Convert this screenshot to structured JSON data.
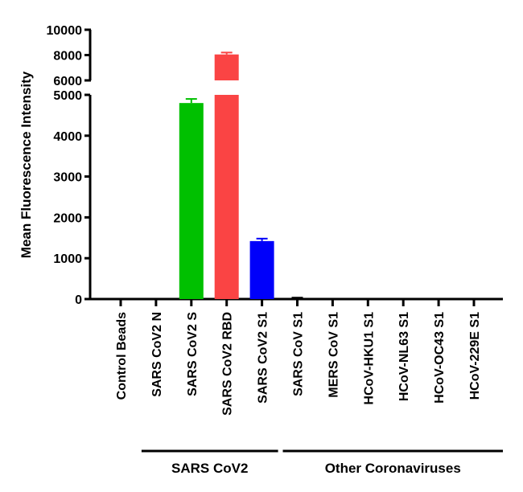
{
  "chart_data": {
    "type": "bar",
    "ylabel": "Mean Fluorescence Intensity",
    "xlabel": "",
    "y_axis_break": [
      5000,
      6000
    ],
    "ylim_lower": [
      0,
      5000
    ],
    "ylim_upper": [
      6000,
      10000
    ],
    "yticks_lower": [
      "0",
      "1000",
      "2000",
      "3000",
      "4000",
      "5000"
    ],
    "yticks_upper": [
      "6000",
      "8000",
      "10000"
    ],
    "categories": [
      "Control Beads",
      "SARS CoV2 N",
      "SARS CoV2 S",
      "SARS CoV2 RBD",
      "SARS CoV2 S1",
      "SARS CoV S1",
      "MERS CoV S1",
      "HCoV-HKU1 S1",
      "HCoV-NL63 S1",
      "HCoV-OC43 S1",
      "HCoV-229E S1"
    ],
    "values": [
      5,
      5,
      4800,
      8050,
      1420,
      20,
      3,
      3,
      3,
      3,
      5
    ],
    "errors": [
      5,
      3,
      100,
      150,
      60,
      15,
      2,
      2,
      2,
      2,
      5
    ],
    "colors": [
      "#000000",
      "#000000",
      "#00c000",
      "#fa4444",
      "#0000fa",
      "#000000",
      "#000000",
      "#000000",
      "#000000",
      "#000000",
      "#000000"
    ],
    "groups": [
      {
        "label": "SARS CoV2",
        "from": 1,
        "to": 4
      },
      {
        "label": "Other Coronaviruses",
        "from": 5,
        "to": 10
      }
    ],
    "grid": false,
    "legend": "none"
  }
}
